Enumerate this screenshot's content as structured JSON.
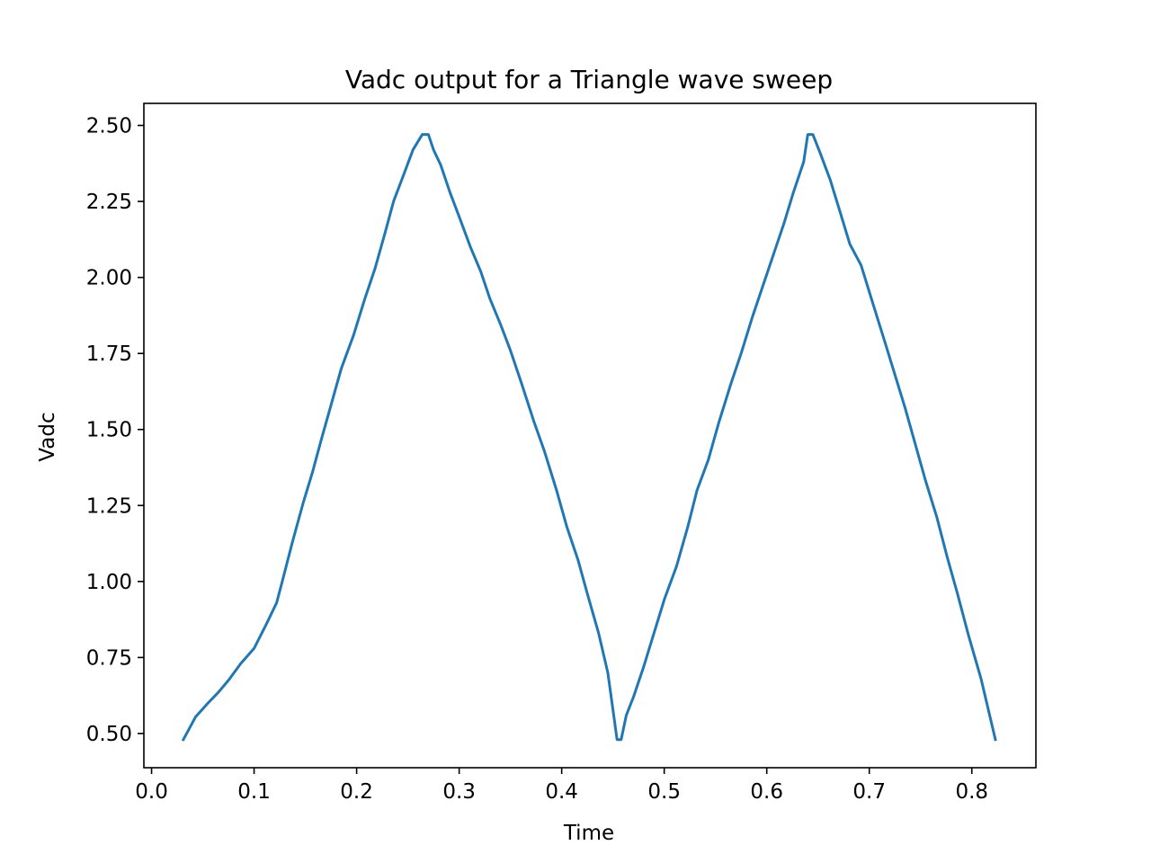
{
  "chart_data": {
    "type": "line",
    "title": "Vadc output for a Triangle wave sweep",
    "xlabel": "Time",
    "ylabel": "Vadc",
    "xlim": [
      -0.0075,
      0.8625
    ],
    "ylim": [
      0.3875,
      2.5725
    ],
    "xticks": [
      0.0,
      0.1,
      0.2,
      0.3,
      0.4,
      0.5,
      0.6,
      0.7,
      0.8
    ],
    "xtick_labels": [
      "0.0",
      "0.1",
      "0.2",
      "0.3",
      "0.4",
      "0.5",
      "0.6",
      "0.7",
      "0.8"
    ],
    "yticks": [
      0.5,
      0.75,
      1.0,
      1.25,
      1.5,
      1.75,
      2.0,
      2.25,
      2.5
    ],
    "ytick_labels": [
      "0.50",
      "0.75",
      "1.00",
      "1.25",
      "1.50",
      "1.75",
      "2.00",
      "2.25",
      "2.50"
    ],
    "grid": false,
    "line_color": "#1f77b4",
    "series": [
      {
        "x": [
          0.031,
          0.043,
          0.055,
          0.065,
          0.075,
          0.087,
          0.1,
          0.112,
          0.122,
          0.129,
          0.137,
          0.148,
          0.157,
          0.165,
          0.175,
          0.185,
          0.197,
          0.208,
          0.218,
          0.228,
          0.236,
          0.245,
          0.255,
          0.264,
          0.27,
          0.275,
          0.282,
          0.291,
          0.3,
          0.311,
          0.321,
          0.33,
          0.341,
          0.35,
          0.361,
          0.373,
          0.383,
          0.395,
          0.405,
          0.416,
          0.425,
          0.436,
          0.445,
          0.454,
          0.458,
          0.463,
          0.47,
          0.48,
          0.49,
          0.5,
          0.512,
          0.523,
          0.532,
          0.543,
          0.553,
          0.565,
          0.575,
          0.586,
          0.597,
          0.607,
          0.617,
          0.626,
          0.636,
          0.64,
          0.645,
          0.652,
          0.662,
          0.672,
          0.681,
          0.692,
          0.703,
          0.715,
          0.725,
          0.735,
          0.745,
          0.755,
          0.766,
          0.776,
          0.786,
          0.797,
          0.809,
          0.823
        ],
        "y": [
          0.48,
          0.555,
          0.6,
          0.635,
          0.675,
          0.73,
          0.78,
          0.86,
          0.93,
          1.02,
          1.125,
          1.26,
          1.36,
          1.46,
          1.58,
          1.7,
          1.81,
          1.93,
          2.03,
          2.15,
          2.25,
          2.33,
          2.42,
          2.47,
          2.47,
          2.42,
          2.37,
          2.28,
          2.2,
          2.1,
          2.02,
          1.93,
          1.84,
          1.76,
          1.65,
          1.525,
          1.43,
          1.3,
          1.18,
          1.07,
          0.96,
          0.83,
          0.7,
          0.48,
          0.48,
          0.56,
          0.62,
          0.72,
          0.83,
          0.94,
          1.05,
          1.18,
          1.3,
          1.4,
          1.52,
          1.65,
          1.75,
          1.87,
          1.98,
          2.08,
          2.18,
          2.28,
          2.38,
          2.47,
          2.47,
          2.41,
          2.32,
          2.21,
          2.11,
          2.04,
          1.92,
          1.79,
          1.68,
          1.57,
          1.45,
          1.33,
          1.21,
          1.08,
          0.96,
          0.82,
          0.68,
          0.48
        ]
      }
    ]
  }
}
